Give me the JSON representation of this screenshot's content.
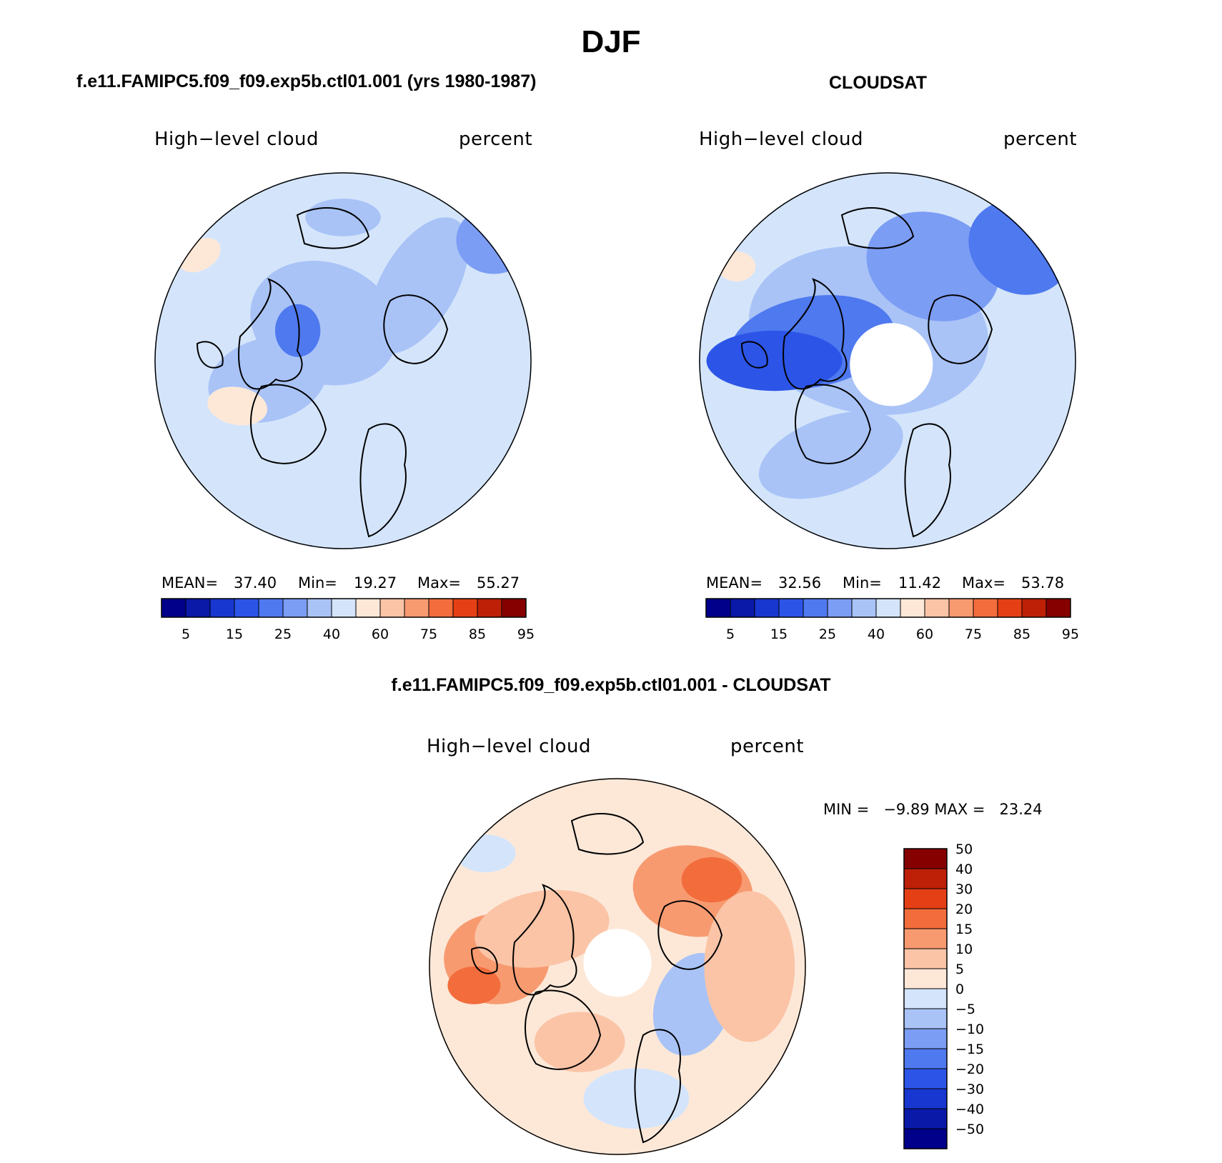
{
  "page": {
    "title": "DJF"
  },
  "panels": [
    {
      "id": "model",
      "title": "f.e11.FAMIPC5.f09_f09.exp5b.ctl01.001 (yrs 1980-1987)",
      "variable": "High−level cloud",
      "units": "percent",
      "stats": {
        "mean_label": "MEAN=",
        "mean": "37.40",
        "min_label": "Min=",
        "min": "19.27",
        "max_label": "Max=",
        "max": "55.27"
      }
    },
    {
      "id": "obs",
      "title": "CLOUDSAT",
      "variable": "High−level cloud",
      "units": "percent",
      "stats": {
        "mean_label": "MEAN=",
        "mean": "32.56",
        "min_label": "Min=",
        "min": "11.42",
        "max_label": "Max=",
        "max": "53.78"
      }
    },
    {
      "id": "diff",
      "title": "f.e11.FAMIPC5.f09_f09.exp5b.ctl01.001 - CLOUDSAT",
      "variable": "High−level cloud",
      "units": "percent",
      "stats_text": "MIN =   −9.89 MAX =   23.24"
    }
  ],
  "chart_data": [
    {
      "type": "heatmap",
      "projection": "north-polar-stereographic",
      "title": "f.e11.FAMIPC5.f09_f09.exp5b.ctl01.001 (yrs 1980-1987)",
      "field": "High-level cloud",
      "units": "percent",
      "mean": 37.4,
      "min": 19.27,
      "max": 55.27,
      "colorbar_levels": [
        5,
        10,
        15,
        20,
        25,
        30,
        40,
        50,
        60,
        70,
        75,
        80,
        85,
        90,
        95
      ],
      "colorbar_tick_labels": [
        "5",
        "15",
        "25",
        "40",
        "60",
        "75",
        "85",
        "95"
      ],
      "colorbar_colors": [
        "#00008b",
        "#0a19a8",
        "#1837d0",
        "#2c55e8",
        "#4f79ef",
        "#7c9df4",
        "#a9c3f7",
        "#d4e5fb",
        "#fde8d8",
        "#fbc4a6",
        "#f79a70",
        "#f26c3c",
        "#e54015",
        "#bd2007",
        "#860000"
      ]
    },
    {
      "type": "heatmap",
      "projection": "north-polar-stereographic",
      "title": "CLOUDSAT",
      "field": "High-level cloud",
      "units": "percent",
      "mean": 32.56,
      "min": 11.42,
      "max": 53.78,
      "colorbar_levels": [
        5,
        10,
        15,
        20,
        25,
        30,
        40,
        50,
        60,
        70,
        75,
        80,
        85,
        90,
        95
      ],
      "colorbar_tick_labels": [
        "5",
        "15",
        "25",
        "40",
        "60",
        "75",
        "85",
        "95"
      ],
      "colorbar_colors": [
        "#00008b",
        "#0a19a8",
        "#1837d0",
        "#2c55e8",
        "#4f79ef",
        "#7c9df4",
        "#a9c3f7",
        "#d4e5fb",
        "#fde8d8",
        "#fbc4a6",
        "#f79a70",
        "#f26c3c",
        "#e54015",
        "#bd2007",
        "#860000"
      ]
    },
    {
      "type": "heatmap",
      "projection": "north-polar-stereographic",
      "title": "f.e11.FAMIPC5.f09_f09.exp5b.ctl01.001 - CLOUDSAT",
      "field": "High-level cloud",
      "units": "percent",
      "min": -9.89,
      "max": 23.24,
      "colorbar_levels": [
        -50,
        -40,
        -30,
        -20,
        -15,
        -10,
        -5,
        0,
        5,
        10,
        15,
        20,
        30,
        40,
        50
      ],
      "colorbar_tick_labels": [
        "−50",
        "−40",
        "−30",
        "−20",
        "−15",
        "−10",
        "−5",
        "0",
        "5",
        "10",
        "15",
        "20",
        "30",
        "40",
        "50"
      ],
      "colorbar_colors": [
        "#00008b",
        "#0a19a8",
        "#1837d0",
        "#2c55e8",
        "#4f79ef",
        "#7c9df4",
        "#a9c3f7",
        "#d4e5fb",
        "#fde8d8",
        "#fbc4a6",
        "#f79a70",
        "#f26c3c",
        "#e54015",
        "#bd2007",
        "#860000"
      ]
    }
  ]
}
